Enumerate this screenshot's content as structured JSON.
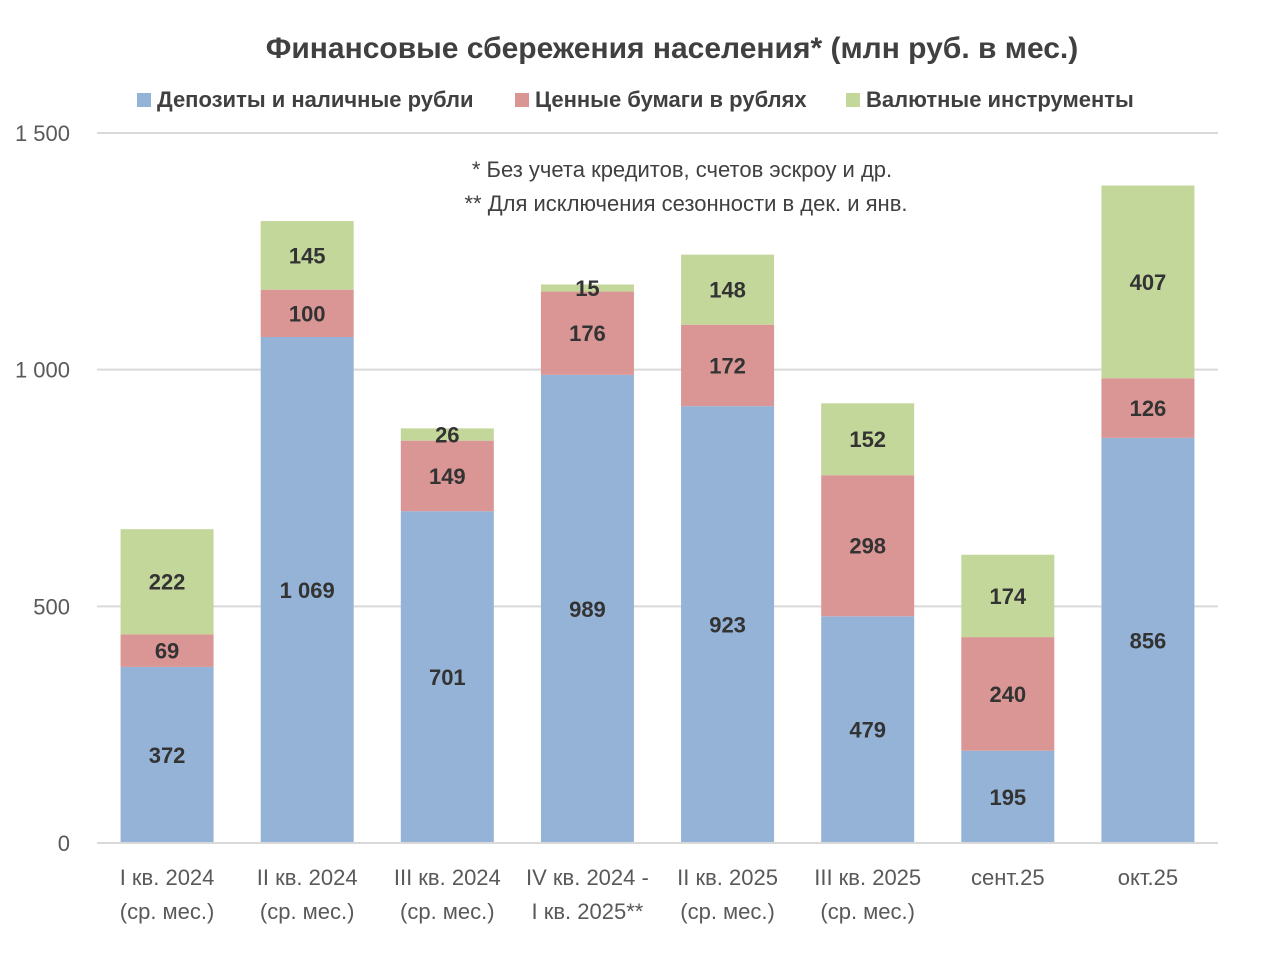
{
  "chart_data": {
    "type": "bar",
    "stacked": true,
    "title": "Финансовые сбережения населения* (млн руб. в мес.)",
    "notes": [
      "* Без учета кредитов, счетов эскроу и др.",
      "** Для исключения сезонности в дек. и янв."
    ],
    "categories": [
      [
        "I кв. 2024",
        "(ср. мес.)"
      ],
      [
        "II кв. 2024",
        "(ср. мес.)"
      ],
      [
        "III кв. 2024",
        "(ср. мес.)"
      ],
      [
        "IV кв. 2024 -",
        "I кв. 2025**"
      ],
      [
        "II кв. 2025",
        "(ср. мес.)"
      ],
      [
        "III кв. 2025",
        "(ср. мес.)"
      ],
      [
        "сент.25"
      ],
      [
        "окт.25"
      ]
    ],
    "series": [
      {
        "name": "Депозиты и наличные рубли",
        "color": "#95B3D7",
        "values": [
          372,
          1069,
          701,
          989,
          923,
          479,
          195,
          856
        ],
        "labels": [
          "372",
          "1 069",
          "701",
          "989",
          "923",
          "479",
          "195",
          "856"
        ]
      },
      {
        "name": "Ценные бумаги в рублях",
        "color": "#DA9694",
        "values": [
          69,
          100,
          149,
          176,
          172,
          298,
          240,
          126
        ],
        "labels": [
          "69",
          "100",
          "149",
          "176",
          "172",
          "298",
          "240",
          "126"
        ]
      },
      {
        "name": "Валютные инструменты",
        "color": "#C4D79B",
        "values": [
          222,
          145,
          26,
          15,
          148,
          152,
          174,
          407
        ],
        "labels": [
          "222",
          "145",
          "26",
          "15",
          "148",
          "152",
          "174",
          "407"
        ]
      }
    ],
    "ylim": [
      0,
      1500
    ],
    "yticks": [
      0,
      500,
      1000,
      1500
    ],
    "ytick_labels": [
      "0",
      "500",
      "1 000",
      "1 500"
    ],
    "grid": true,
    "legend_position": "top"
  }
}
